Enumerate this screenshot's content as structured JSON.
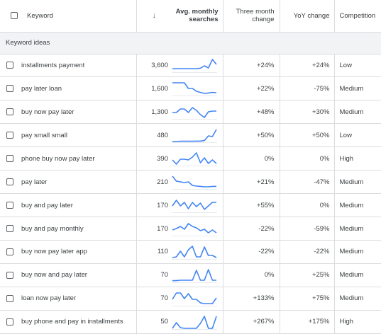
{
  "header": {
    "keyword": "Keyword",
    "sort_icon": "arrow-down-icon",
    "avg_line1": "Avg. monthly",
    "avg_line2": "searches",
    "three_line1": "Three month",
    "three_line2": "change",
    "yoy": "YoY change",
    "competition": "Competition"
  },
  "section_label": "Keyword ideas",
  "accent_color": "#4285f4",
  "rows": [
    {
      "keyword": "installments payment",
      "searches": "3,600",
      "three_month": "+24%",
      "yoy": "+24%",
      "competition": "Low",
      "trend": [
        0.75,
        0.75,
        0.75,
        0.75,
        0.75,
        0.75,
        0.75,
        0.72,
        0.55,
        0.7,
        0.1,
        0.45
      ]
    },
    {
      "keyword": "pay later loan",
      "searches": "1,600",
      "three_month": "+22%",
      "yoy": "-75%",
      "competition": "Medium",
      "trend": [
        0.1,
        0.1,
        0.1,
        0.1,
        0.5,
        0.5,
        0.7,
        0.78,
        0.85,
        0.82,
        0.78,
        0.8
      ]
    },
    {
      "keyword": "buy now pay later",
      "searches": "1,300",
      "three_month": "+48%",
      "yoy": "+30%",
      "competition": "Medium",
      "trend": [
        0.55,
        0.55,
        0.3,
        0.3,
        0.55,
        0.2,
        0.4,
        0.7,
        0.9,
        0.5,
        0.45,
        0.45
      ]
    },
    {
      "keyword": "pay small small",
      "searches": "480",
      "three_month": "+50%",
      "yoy": "+50%",
      "competition": "Low",
      "trend": [
        0.95,
        0.95,
        0.93,
        0.93,
        0.93,
        0.93,
        0.92,
        0.92,
        0.88,
        0.55,
        0.6,
        0.1
      ]
    },
    {
      "keyword": "phone buy now pay later",
      "searches": "390",
      "three_month": "0%",
      "yoy": "0%",
      "competition": "High",
      "trend": [
        0.6,
        0.9,
        0.55,
        0.55,
        0.6,
        0.4,
        0.1,
        0.8,
        0.45,
        0.85,
        0.6,
        0.85
      ]
    },
    {
      "keyword": "pay later",
      "searches": "210",
      "three_month": "+21%",
      "yoy": "-47%",
      "competition": "Medium",
      "trend": [
        0.1,
        0.45,
        0.5,
        0.55,
        0.5,
        0.75,
        0.8,
        0.82,
        0.85,
        0.85,
        0.82,
        0.82
      ]
    },
    {
      "keyword": "buy and pay later",
      "searches": "170",
      "three_month": "+55%",
      "yoy": "0%",
      "competition": "Medium",
      "trend": [
        0.55,
        0.15,
        0.55,
        0.3,
        0.75,
        0.3,
        0.6,
        0.35,
        0.8,
        0.55,
        0.3,
        0.3
      ]
    },
    {
      "keyword": "buy and pay monthly",
      "searches": "170",
      "three_month": "-22%",
      "yoy": "-59%",
      "competition": "Medium",
      "trend": [
        0.6,
        0.5,
        0.35,
        0.55,
        0.15,
        0.35,
        0.45,
        0.65,
        0.55,
        0.8,
        0.6,
        0.8
      ]
    },
    {
      "keyword": "buy now pay later app",
      "searches": "110",
      "three_month": "-22%",
      "yoy": "-22%",
      "competition": "Medium",
      "trend": [
        0.9,
        0.85,
        0.45,
        0.85,
        0.35,
        0.1,
        0.85,
        0.85,
        0.15,
        0.75,
        0.75,
        0.9
      ]
    },
    {
      "keyword": "buy now and pay later",
      "searches": "70",
      "three_month": "0%",
      "yoy": "+25%",
      "competition": "Medium",
      "trend": [
        0.88,
        0.88,
        0.85,
        0.85,
        0.85,
        0.85,
        0.15,
        0.85,
        0.85,
        0.1,
        0.85,
        0.85
      ]
    },
    {
      "keyword": "loan now pay later",
      "searches": "70",
      "three_month": "+133%",
      "yoy": "+75%",
      "competition": "Medium",
      "trend": [
        0.55,
        0.1,
        0.1,
        0.5,
        0.15,
        0.55,
        0.55,
        0.8,
        0.85,
        0.85,
        0.85,
        0.45
      ]
    },
    {
      "keyword": "buy phone and pay in installments",
      "searches": "50",
      "three_month": "+267%",
      "yoy": "+175%",
      "competition": "High",
      "trend": [
        0.95,
        0.55,
        0.9,
        0.95,
        0.95,
        0.95,
        0.95,
        0.6,
        0.1,
        0.95,
        0.95,
        0.1
      ]
    }
  ]
}
